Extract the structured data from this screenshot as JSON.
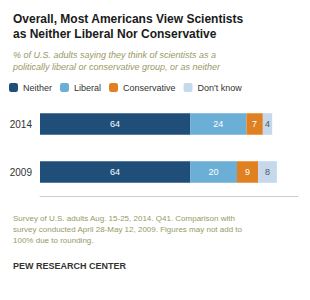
{
  "chart_data": {
    "type": "bar",
    "orientation": "horizontal",
    "stacked": true,
    "title": "Overall, Most Americans View Scientists\nas Neither Liberal Nor Conservative",
    "subtitle": "% of U.S. adults saying they think of scientists as a\npolitically liberal or conservative group, or as neither",
    "categories": [
      "2014",
      "2009"
    ],
    "series": [
      {
        "name": "Neither",
        "color": "#1f4e79",
        "values": [
          64,
          64
        ]
      },
      {
        "name": "Liberal",
        "color": "#6baed6",
        "values": [
          24,
          20
        ]
      },
      {
        "name": "Conservative",
        "color": "#e08020",
        "values": [
          7,
          9
        ]
      },
      {
        "name": "Don't know",
        "color": "#c6d9ec",
        "values": [
          4,
          8
        ]
      }
    ],
    "xlim": [
      0,
      110
    ],
    "data_labels": true,
    "tick_labels": "y",
    "grid": false,
    "legend": "upper left",
    "annotations": [
      "Survey of U.S. adults Aug. 15-25, 2014. Q41. Comparison with\nsurvey conducted April 28-May 12, 2009. Figures may not add to\n100% due to rounding.",
      "PEW RESEARCH CENTER"
    ]
  }
}
